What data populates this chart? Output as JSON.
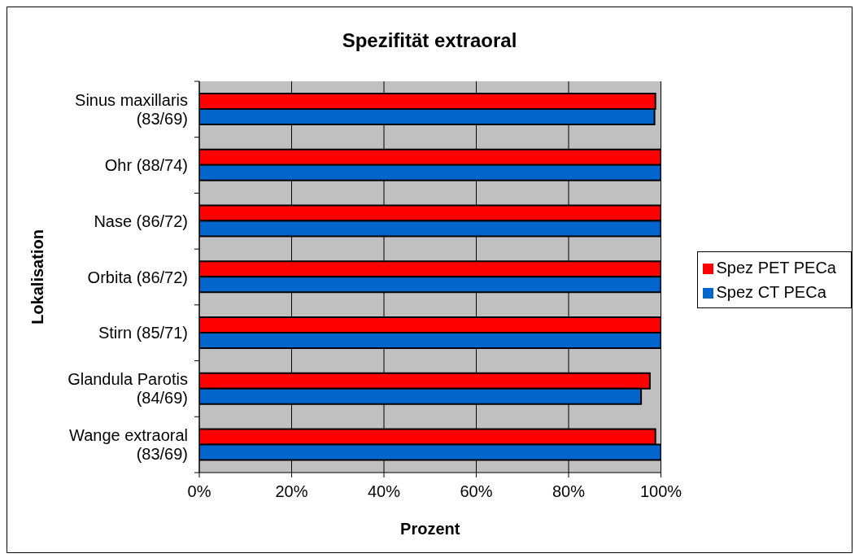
{
  "chart_data": {
    "type": "bar",
    "orientation": "horizontal",
    "title": "Spezifität extraoral",
    "xlabel": "Prozent",
    "ylabel": "Lokalisation",
    "categories": [
      "Sinus maxillaris (83/69)",
      "Ohr (88/74)",
      "Nase (86/72)",
      "Orbita (86/72)",
      "Stirn (85/71)",
      "Glandula Parotis (84/69)",
      "Wange extraoral (83/69)"
    ],
    "series": [
      {
        "name": "Spez PET PECa",
        "color": "#ff0000",
        "values": [
          98.8,
          100,
          100,
          100,
          100,
          97.6,
          98.8
        ]
      },
      {
        "name": "Spez CT PECa",
        "color": "#0066cc",
        "values": [
          98.6,
          100,
          100,
          100,
          100,
          95.7,
          100
        ]
      }
    ],
    "xlim": [
      0,
      100
    ],
    "xticks": [
      {
        "value": 0,
        "label": "0%"
      },
      {
        "value": 20,
        "label": "20%"
      },
      {
        "value": 40,
        "label": "40%"
      },
      {
        "value": 60,
        "label": "60%"
      },
      {
        "value": 80,
        "label": "80%"
      },
      {
        "value": 100,
        "label": "100%"
      }
    ],
    "grid": "x",
    "legend": "right"
  }
}
